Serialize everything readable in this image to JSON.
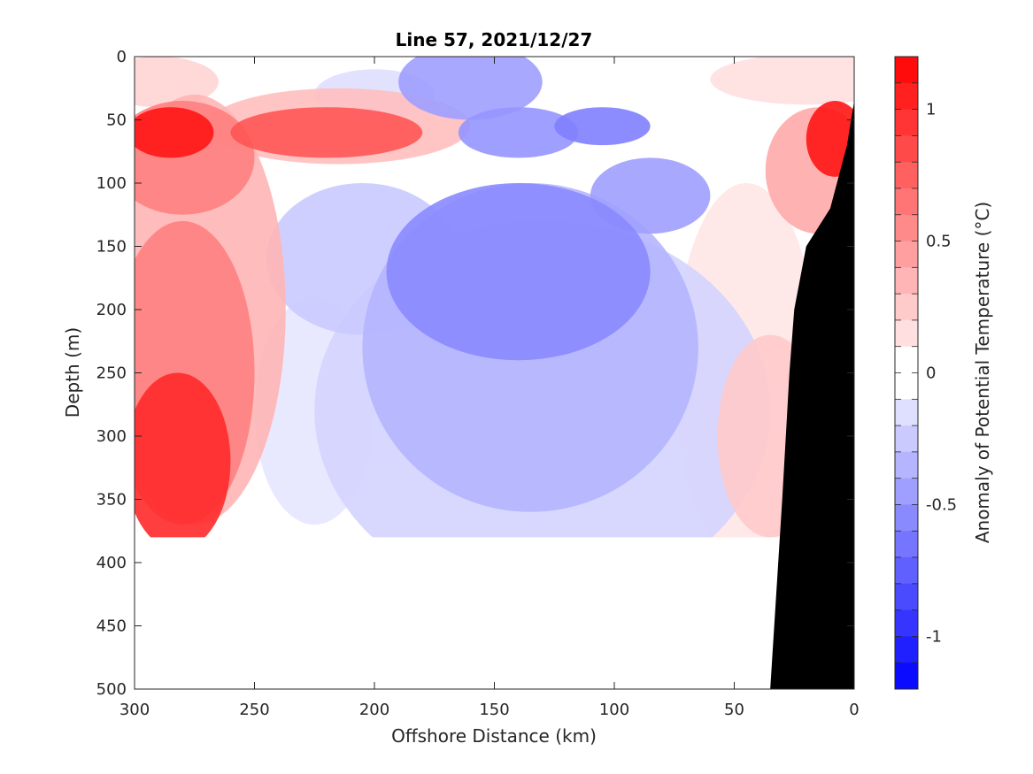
{
  "chart_data": {
    "type": "heatmap",
    "title": "Line 57, 2021/12/27",
    "xlabel": "Offshore Distance (km)",
    "ylabel": "Depth (m)",
    "colorbar_label": "Anomaly of Potential Temperature (°C)",
    "x_range": [
      300,
      0
    ],
    "x_reversed": true,
    "y_range": [
      0,
      500
    ],
    "y_reversed": true,
    "x_ticks": [
      300,
      250,
      200,
      150,
      100,
      50,
      0
    ],
    "y_ticks": [
      0,
      50,
      100,
      150,
      200,
      250,
      300,
      350,
      400,
      450,
      500
    ],
    "colorbar_range": [
      -1.2,
      1.2
    ],
    "colorbar_ticks": [
      {
        "value": 1,
        "label": "1"
      },
      {
        "value": 0.5,
        "label": "0.5"
      },
      {
        "value": 0,
        "label": "0"
      },
      {
        "value": -0.5,
        "label": "-0.5"
      },
      {
        "value": -1,
        "label": "-1"
      }
    ],
    "colorbar_levels": 24,
    "colors": {
      "warm": "#ff0000",
      "cold": "#0000ff",
      "zero": "#ffffff",
      "bathymetry": "#000000"
    },
    "data_max_depth_m": 380,
    "bathymetry": [
      [
        35,
        500
      ],
      [
        30,
        350
      ],
      [
        27,
        250
      ],
      [
        25,
        200
      ],
      [
        20,
        150
      ],
      [
        10,
        120
      ],
      [
        3,
        70
      ],
      [
        0,
        35
      ]
    ],
    "anomaly_blobs": [
      {
        "x": 285,
        "y": 60,
        "rx": 18,
        "ry": 20,
        "v": 1.1
      },
      {
        "x": 280,
        "y": 80,
        "rx": 30,
        "ry": 45,
        "v": 0.6
      },
      {
        "x": 290,
        "y": 20,
        "rx": 25,
        "ry": 20,
        "v": 0.2
      },
      {
        "x": 282,
        "y": 320,
        "rx": 22,
        "ry": 70,
        "v": 1.0
      },
      {
        "x": 280,
        "y": 250,
        "rx": 30,
        "ry": 120,
        "v": 0.6
      },
      {
        "x": 275,
        "y": 200,
        "rx": 38,
        "ry": 170,
        "v": 0.35
      },
      {
        "x": 220,
        "y": 60,
        "rx": 40,
        "ry": 20,
        "v": 0.8
      },
      {
        "x": 215,
        "y": 55,
        "rx": 55,
        "ry": 30,
        "v": 0.3
      },
      {
        "x": 20,
        "y": 18,
        "rx": 40,
        "ry": 20,
        "v": 0.15
      },
      {
        "x": 8,
        "y": 65,
        "rx": 12,
        "ry": 30,
        "v": 1.1
      },
      {
        "x": 15,
        "y": 90,
        "rx": 22,
        "ry": 50,
        "v": 0.4
      },
      {
        "x": 35,
        "y": 300,
        "rx": 22,
        "ry": 80,
        "v": 0.25
      },
      {
        "x": 45,
        "y": 250,
        "rx": 30,
        "ry": 150,
        "v": 0.12
      },
      {
        "x": 140,
        "y": 170,
        "rx": 55,
        "ry": 70,
        "v": -0.55
      },
      {
        "x": 135,
        "y": 230,
        "rx": 70,
        "ry": 130,
        "v": -0.35
      },
      {
        "x": 130,
        "y": 280,
        "rx": 95,
        "ry": 150,
        "v": -0.2
      },
      {
        "x": 160,
        "y": 20,
        "rx": 30,
        "ry": 30,
        "v": -0.45
      },
      {
        "x": 140,
        "y": 60,
        "rx": 25,
        "ry": 20,
        "v": -0.5
      },
      {
        "x": 105,
        "y": 55,
        "rx": 20,
        "ry": 15,
        "v": -0.6
      },
      {
        "x": 85,
        "y": 110,
        "rx": 25,
        "ry": 30,
        "v": -0.45
      },
      {
        "x": 205,
        "y": 160,
        "rx": 40,
        "ry": 60,
        "v": -0.25
      },
      {
        "x": 180,
        "y": 300,
        "rx": 20,
        "ry": 80,
        "v": 0.05
      },
      {
        "x": 225,
        "y": 280,
        "rx": 25,
        "ry": 90,
        "v": -0.12
      },
      {
        "x": 200,
        "y": 30,
        "rx": 25,
        "ry": 20,
        "v": -0.15
      }
    ]
  }
}
